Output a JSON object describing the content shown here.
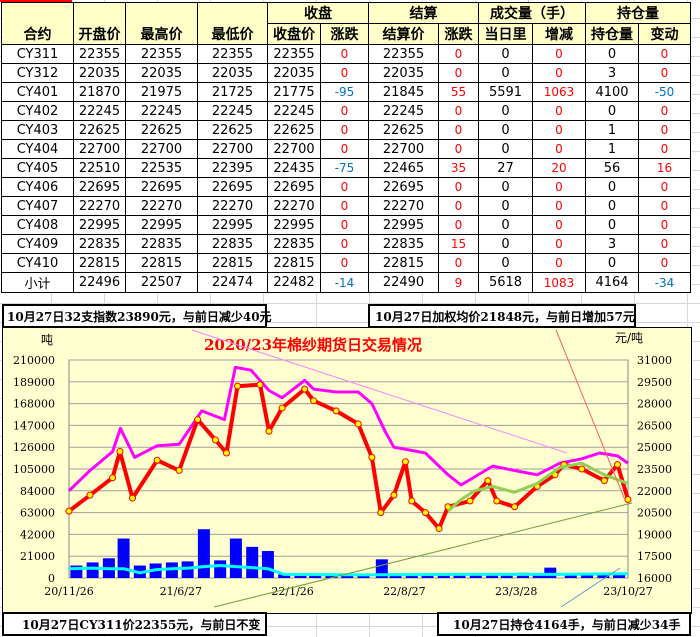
{
  "table": {
    "group_headers": {
      "close": "收盘",
      "settle": "结算",
      "volume": "成交量（手）",
      "oi": "持仓量"
    },
    "headers": [
      "合约",
      "开盘价",
      "最高价",
      "最低价",
      "收盘价",
      "涨跌",
      "结算价",
      "涨跌",
      "当日里",
      "增减",
      "持仓量",
      "变动"
    ],
    "rows": [
      [
        "CY311",
        "22355",
        "22355",
        "22355",
        "22355",
        "0",
        "22355",
        "0",
        "0",
        "0",
        "0",
        "0"
      ],
      [
        "CY312",
        "22035",
        "22035",
        "22035",
        "22035",
        "0",
        "22035",
        "0",
        "0",
        "0",
        "3",
        "0"
      ],
      [
        "CY401",
        "21870",
        "21975",
        "21725",
        "21775",
        "-95",
        "21845",
        "55",
        "5591",
        "1063",
        "4100",
        "-50"
      ],
      [
        "CY402",
        "22245",
        "22245",
        "22245",
        "22245",
        "0",
        "22245",
        "0",
        "0",
        "0",
        "0",
        "0"
      ],
      [
        "CY403",
        "22625",
        "22625",
        "22625",
        "22625",
        "0",
        "22625",
        "0",
        "0",
        "0",
        "1",
        "0"
      ],
      [
        "CY404",
        "22700",
        "22700",
        "22700",
        "22700",
        "0",
        "22700",
        "0",
        "0",
        "0",
        "1",
        "0"
      ],
      [
        "CY405",
        "22510",
        "22535",
        "22395",
        "22435",
        "-75",
        "22465",
        "35",
        "27",
        "20",
        "56",
        "16"
      ],
      [
        "CY406",
        "22695",
        "22695",
        "22695",
        "22695",
        "0",
        "22695",
        "0",
        "0",
        "0",
        "0",
        "0"
      ],
      [
        "CY407",
        "22270",
        "22270",
        "22270",
        "22270",
        "0",
        "22270",
        "0",
        "0",
        "0",
        "0",
        "0"
      ],
      [
        "CY408",
        "22995",
        "22995",
        "22995",
        "22995",
        "0",
        "22995",
        "0",
        "0",
        "0",
        "0",
        "0"
      ],
      [
        "CY409",
        "22835",
        "22835",
        "22835",
        "22835",
        "0",
        "22835",
        "15",
        "0",
        "0",
        "3",
        "0"
      ],
      [
        "CY410",
        "22815",
        "22815",
        "22815",
        "22815",
        "0",
        "22815",
        "0",
        "0",
        "0",
        "0",
        "0"
      ],
      [
        "小计",
        "22496",
        "22507",
        "22474",
        "22482",
        "-14",
        "22490",
        "9",
        "5618",
        "1083",
        "4164",
        "-34"
      ]
    ]
  },
  "notes": {
    "index": "10月27日32支指数23890元，与前日减少40元",
    "weighted": "10月27日加权均价21848元，与前日增加57元",
    "contract": "10月27日CY311价22355元，与前日不变",
    "oi": "10月27日持仓4164手，与前日减少34手"
  },
  "colors": {
    "up": "#ff0000",
    "down": "#0070c0",
    "header_bg": "#ffffc8",
    "chart_bg": "#ffffd0",
    "index": "#ff00ff",
    "futures": "#ff0000",
    "futures_marker": "#ffff00",
    "weighted": "#92d050",
    "volume": "#0000ff",
    "open_interest": "#00ffff"
  },
  "chart_data": {
    "type": "line",
    "title": "2020/23年棉纱期货日交易情况",
    "ylabel_left": "吨",
    "ylabel_right": "元/吨",
    "ylim_left": [
      0,
      210000
    ],
    "ylim_right": [
      16000,
      31000
    ],
    "yticks_left": [
      "210000",
      "189000",
      "168000",
      "147000",
      "126000",
      "105000",
      "84000",
      "63000",
      "42000",
      "21000",
      "0"
    ],
    "yticks_right": [
      "31000",
      "29500",
      "28000",
      "26500",
      "25000",
      "23500",
      "22000",
      "20500",
      "19000",
      "17500",
      "16000"
    ],
    "xticks": [
      "20/11/26",
      "21/6/27",
      "22/1/26",
      "22/8/27",
      "23/3/28",
      "23/10/27"
    ],
    "xlim": [
      "2020-11-26",
      "2023-10-27"
    ],
    "grid": true,
    "series": [
      {
        "axis": "right",
        "style": "line",
        "color": "#ff00ff",
        "points": [
          [
            "2020-11-26",
            22000
          ],
          [
            "2021-01-05",
            23400
          ],
          [
            "2021-02-17",
            24700
          ],
          [
            "2021-03-04",
            26300
          ],
          [
            "2021-03-31",
            24300
          ],
          [
            "2021-05-13",
            25100
          ],
          [
            "2021-06-24",
            25200
          ],
          [
            "2021-08-06",
            27500
          ],
          [
            "2021-09-18",
            26900
          ],
          [
            "2021-10-09",
            30500
          ],
          [
            "2021-11-08",
            30300
          ],
          [
            "2021-12-12",
            28900
          ],
          [
            "2022-01-06",
            28400
          ],
          [
            "2022-02-18",
            29600
          ],
          [
            "2022-03-07",
            29000
          ],
          [
            "2022-04-19",
            28800
          ],
          [
            "2022-05-31",
            28800
          ],
          [
            "2022-06-26",
            28000
          ],
          [
            "2022-07-21",
            26100
          ],
          [
            "2022-08-07",
            25000
          ],
          [
            "2022-10-06",
            24600
          ],
          [
            "2022-11-18",
            23100
          ],
          [
            "2022-12-13",
            22400
          ],
          [
            "2023-02-11",
            23700
          ],
          [
            "2023-03-25",
            23400
          ],
          [
            "2023-05-07",
            23100
          ],
          [
            "2023-06-19",
            23900
          ],
          [
            "2023-07-31",
            24200
          ],
          [
            "2023-09-03",
            24600
          ],
          [
            "2023-10-07",
            24400
          ],
          [
            "2023-10-27",
            23900
          ]
        ]
      },
      {
        "axis": "right",
        "style": "marker-line",
        "color": "#ff0000",
        "points": [
          [
            "2020-11-26",
            20600
          ],
          [
            "2021-01-05",
            21700
          ],
          [
            "2021-02-17",
            22900
          ],
          [
            "2021-03-03",
            24700
          ],
          [
            "2021-03-27",
            21500
          ],
          [
            "2021-05-13",
            24100
          ],
          [
            "2021-06-24",
            23400
          ],
          [
            "2021-07-29",
            26900
          ],
          [
            "2021-09-01",
            25500
          ],
          [
            "2021-09-22",
            24600
          ],
          [
            "2021-10-13",
            29200
          ],
          [
            "2021-11-25",
            29300
          ],
          [
            "2021-12-12",
            26100
          ],
          [
            "2022-01-06",
            27700
          ],
          [
            "2022-02-18",
            29000
          ],
          [
            "2022-03-07",
            28200
          ],
          [
            "2022-04-19",
            27500
          ],
          [
            "2022-05-31",
            26600
          ],
          [
            "2022-06-26",
            24300
          ],
          [
            "2022-07-13",
            20500
          ],
          [
            "2022-08-07",
            21700
          ],
          [
            "2022-08-29",
            24000
          ],
          [
            "2022-09-10",
            21300
          ],
          [
            "2022-10-06",
            20500
          ],
          [
            "2022-11-01",
            19400
          ],
          [
            "2022-11-18",
            20900
          ],
          [
            "2022-12-30",
            21300
          ],
          [
            "2023-02-02",
            22700
          ],
          [
            "2023-02-19",
            21300
          ],
          [
            "2023-03-25",
            20900
          ],
          [
            "2023-05-07",
            22300
          ],
          [
            "2023-06-10",
            23100
          ],
          [
            "2023-06-27",
            23800
          ],
          [
            "2023-07-31",
            23500
          ],
          [
            "2023-09-12",
            22700
          ],
          [
            "2023-10-07",
            23800
          ],
          [
            "2023-10-27",
            21400
          ]
        ]
      },
      {
        "axis": "right",
        "style": "line",
        "color": "#92d050",
        "points": [
          [
            "2022-11-18",
            20600
          ],
          [
            "2022-12-13",
            21400
          ],
          [
            "2023-01-08",
            22000
          ],
          [
            "2023-02-11",
            22300
          ],
          [
            "2023-03-25",
            21900
          ],
          [
            "2023-05-07",
            22500
          ],
          [
            "2023-06-19",
            23600
          ],
          [
            "2023-07-31",
            23900
          ],
          [
            "2023-09-12",
            23100
          ],
          [
            "2023-10-27",
            22500
          ]
        ]
      },
      {
        "axis": "left",
        "style": "bar",
        "color": "#0000ff",
        "points": [
          [
            "2020-12-10",
            12000
          ],
          [
            "2021-01-10",
            15000
          ],
          [
            "2021-02-10",
            19000
          ],
          [
            "2021-03-10",
            38000
          ],
          [
            "2021-04-10",
            12000
          ],
          [
            "2021-05-10",
            14000
          ],
          [
            "2021-06-10",
            15000
          ],
          [
            "2021-07-10",
            16000
          ],
          [
            "2021-08-10",
            47000
          ],
          [
            "2021-09-10",
            17000
          ],
          [
            "2021-10-10",
            38000
          ],
          [
            "2021-11-10",
            30000
          ],
          [
            "2021-12-10",
            26000
          ],
          [
            "2022-01-10",
            3500
          ],
          [
            "2022-02-10",
            3000
          ],
          [
            "2022-03-10",
            3500
          ],
          [
            "2022-04-10",
            3000
          ],
          [
            "2022-05-10",
            3500
          ],
          [
            "2022-06-10",
            3000
          ],
          [
            "2022-07-15",
            18000
          ],
          [
            "2022-08-10",
            4000
          ],
          [
            "2022-09-10",
            3500
          ],
          [
            "2022-10-10",
            3000
          ],
          [
            "2022-11-10",
            4000
          ],
          [
            "2022-12-10",
            3500
          ],
          [
            "2023-01-10",
            3000
          ],
          [
            "2023-02-10",
            3500
          ],
          [
            "2023-03-10",
            3000
          ],
          [
            "2023-04-10",
            5000
          ],
          [
            "2023-05-10",
            3500
          ],
          [
            "2023-06-01",
            10000
          ],
          [
            "2023-07-10",
            4000
          ],
          [
            "2023-08-10",
            3500
          ],
          [
            "2023-09-10",
            5000
          ],
          [
            "2023-10-10",
            4000
          ]
        ]
      },
      {
        "axis": "left",
        "style": "line",
        "color": "#00ffff",
        "points": [
          [
            "2020-11-26",
            9000
          ],
          [
            "2021-01-10",
            9500
          ],
          [
            "2021-02-10",
            9000
          ],
          [
            "2021-03-10",
            9000
          ],
          [
            "2021-04-10",
            5000
          ],
          [
            "2021-05-10",
            8000
          ],
          [
            "2021-06-10",
            9000
          ],
          [
            "2021-07-10",
            9500
          ],
          [
            "2021-08-10",
            11000
          ],
          [
            "2021-09-10",
            12000
          ],
          [
            "2021-10-10",
            11000
          ],
          [
            "2021-11-10",
            10000
          ],
          [
            "2021-12-10",
            9000
          ],
          [
            "2022-01-10",
            3500
          ],
          [
            "2022-06-10",
            3000
          ],
          [
            "2022-12-10",
            3500
          ],
          [
            "2023-06-10",
            3500
          ],
          [
            "2023-10-27",
            4000
          ]
        ]
      }
    ]
  }
}
